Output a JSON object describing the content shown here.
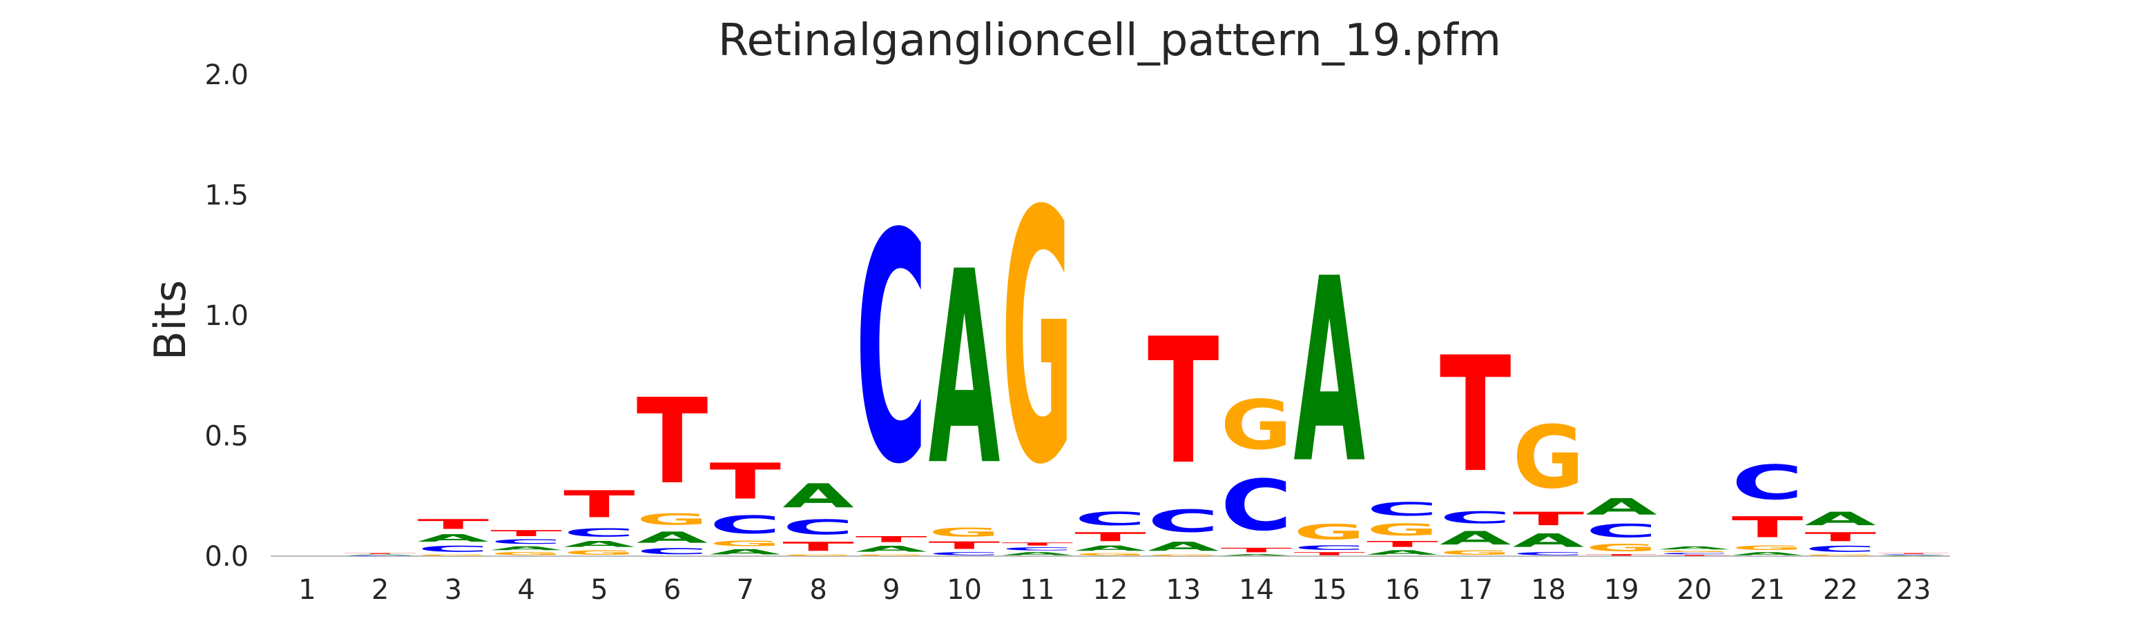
{
  "chart_data": {
    "type": "sequence-logo",
    "title": "Retinalganglioncell_pattern_19.pfm",
    "ylabel": "Bits",
    "xlabel": "",
    "ylim": [
      0,
      2.0
    ],
    "yticks": [
      "0.0",
      "0.5",
      "1.0",
      "1.5",
      "2.0"
    ],
    "grid": false,
    "colors": {
      "A": "#008000",
      "C": "#0000ff",
      "G": "#ffa500",
      "T": "#ff0000"
    },
    "positions": [
      {
        "label": "1",
        "stack": []
      },
      {
        "label": "2",
        "stack": [
          [
            "C",
            0.004
          ],
          [
            "A",
            0.004
          ],
          [
            "T",
            0.006
          ]
        ]
      },
      {
        "label": "3",
        "stack": [
          [
            "G",
            0.01
          ],
          [
            "C",
            0.04
          ],
          [
            "A",
            0.05
          ],
          [
            "T",
            0.065
          ]
        ]
      },
      {
        "label": "4",
        "stack": [
          [
            "G",
            0.02
          ],
          [
            "A",
            0.025
          ],
          [
            "C",
            0.03
          ],
          [
            "T",
            0.04
          ]
        ]
      },
      {
        "label": "5",
        "stack": [
          [
            "G",
            0.03
          ],
          [
            "A",
            0.04
          ],
          [
            "C",
            0.055
          ],
          [
            "T",
            0.18
          ]
        ]
      },
      {
        "label": "6",
        "stack": [
          [
            "C",
            0.04
          ],
          [
            "A",
            0.075
          ],
          [
            "G",
            0.075
          ],
          [
            "T",
            0.57
          ]
        ]
      },
      {
        "label": "7",
        "stack": [
          [
            "A",
            0.035
          ],
          [
            "G",
            0.035
          ],
          [
            "C",
            0.12
          ],
          [
            "T",
            0.24
          ]
        ]
      },
      {
        "label": "8",
        "stack": [
          [
            "G",
            0.01
          ],
          [
            "T",
            0.06
          ],
          [
            "C",
            0.1
          ],
          [
            "A",
            0.16
          ]
        ]
      },
      {
        "label": "9",
        "stack": [
          [
            "G",
            0.01
          ],
          [
            "A",
            0.04
          ],
          [
            "T",
            0.04
          ],
          [
            "C",
            1.53
          ]
        ]
      },
      {
        "label": "10",
        "stack": [
          [
            "C",
            0.02
          ],
          [
            "T",
            0.05
          ],
          [
            "G",
            0.06
          ],
          [
            "A",
            1.29
          ]
        ]
      },
      {
        "label": "11",
        "stack": [
          [
            "A",
            0.02
          ],
          [
            "C",
            0.02
          ],
          [
            "T",
            0.02
          ],
          [
            "G",
            1.68
          ]
        ]
      },
      {
        "label": "12",
        "stack": [
          [
            "G",
            0.015
          ],
          [
            "A",
            0.035
          ],
          [
            "T",
            0.06
          ],
          [
            "C",
            0.09
          ]
        ]
      },
      {
        "label": "13",
        "stack": [
          [
            "G",
            0.01
          ],
          [
            "A",
            0.06
          ],
          [
            "C",
            0.15
          ],
          [
            "T",
            0.84
          ]
        ]
      },
      {
        "label": "14",
        "stack": [
          [
            "A",
            0.01
          ],
          [
            "T",
            0.03
          ],
          [
            "C",
            0.34
          ],
          [
            "G",
            0.33
          ]
        ]
      },
      {
        "label": "15",
        "stack": [
          [
            "T",
            0.02
          ],
          [
            "C",
            0.03
          ],
          [
            "G",
            0.1
          ],
          [
            "A",
            1.23
          ]
        ]
      },
      {
        "label": "16",
        "stack": [
          [
            "A",
            0.03
          ],
          [
            "T",
            0.04
          ],
          [
            "G",
            0.08
          ],
          [
            "C",
            0.09
          ]
        ]
      },
      {
        "label": "17",
        "stack": [
          [
            "G",
            0.03
          ],
          [
            "A",
            0.09
          ],
          [
            "C",
            0.08
          ],
          [
            "T",
            0.77
          ]
        ]
      },
      {
        "label": "18",
        "stack": [
          [
            "C",
            0.02
          ],
          [
            "A",
            0.09
          ],
          [
            "T",
            0.09
          ],
          [
            "G",
            0.42
          ]
        ]
      },
      {
        "label": "19",
        "stack": [
          [
            "T",
            0.01
          ],
          [
            "G",
            0.05
          ],
          [
            "C",
            0.09
          ],
          [
            "A",
            0.11
          ]
        ]
      },
      {
        "label": "20",
        "stack": [
          [
            "T",
            0.006
          ],
          [
            "C",
            0.009
          ],
          [
            "G",
            0.009
          ],
          [
            "A",
            0.02
          ]
        ]
      },
      {
        "label": "21",
        "stack": [
          [
            "A",
            0.02
          ],
          [
            "G",
            0.03
          ],
          [
            "T",
            0.14
          ],
          [
            "C",
            0.23
          ]
        ]
      },
      {
        "label": "22",
        "stack": [
          [
            "G",
            0.01
          ],
          [
            "C",
            0.04
          ],
          [
            "T",
            0.06
          ],
          [
            "A",
            0.09
          ]
        ]
      },
      {
        "label": "23",
        "stack": [
          [
            "A",
            0.004
          ],
          [
            "C",
            0.004
          ],
          [
            "T",
            0.006
          ]
        ]
      }
    ]
  }
}
